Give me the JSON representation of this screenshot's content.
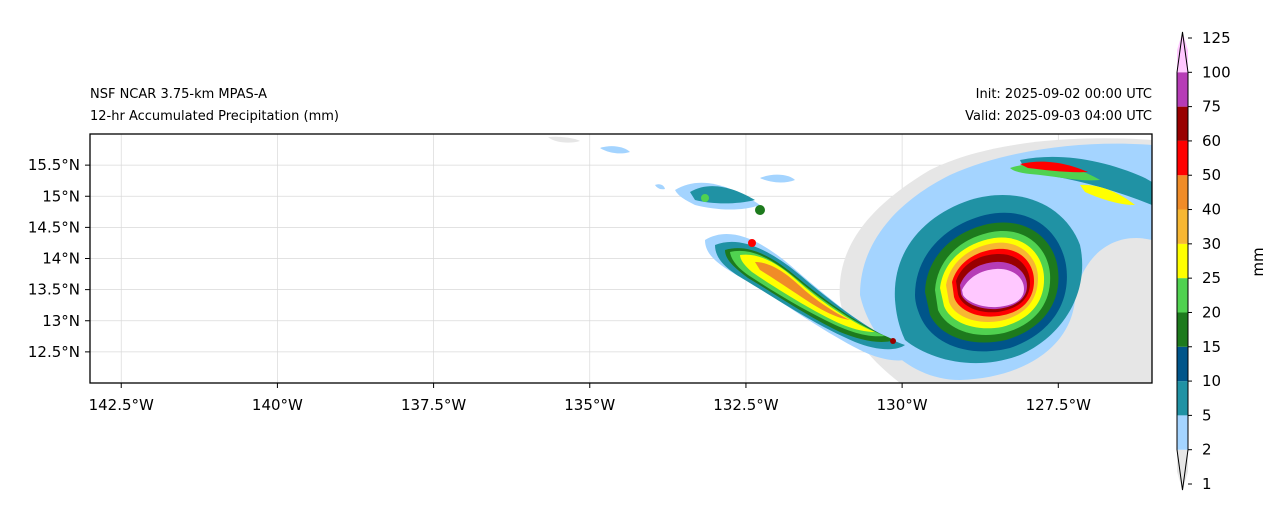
{
  "titles": {
    "model": "NSF NCAR 3.75-km MPAS-A",
    "field": "12-hr Accumulated Precipitation (mm)",
    "init": "Init: 2025-09-02 00:00 UTC",
    "valid": "Valid: 2025-09-03 04:00 UTC"
  },
  "map": {
    "lon_range": [
      -143,
      -126
    ],
    "lat_range": [
      12.0,
      16.0
    ],
    "lon_ticks": [
      {
        "value": -142.5,
        "label": "142.5°W"
      },
      {
        "value": -140.0,
        "label": "140°W"
      },
      {
        "value": -137.5,
        "label": "137.5°W"
      },
      {
        "value": -135.0,
        "label": "135°W"
      },
      {
        "value": -132.5,
        "label": "132.5°W"
      },
      {
        "value": -130.0,
        "label": "130°W"
      },
      {
        "value": -127.5,
        "label": "127.5°W"
      }
    ],
    "lat_ticks": [
      {
        "value": 15.5,
        "label": "15.5°N"
      },
      {
        "value": 15.0,
        "label": "15°N"
      },
      {
        "value": 14.5,
        "label": "14.5°N"
      },
      {
        "value": 14.0,
        "label": "14°N"
      },
      {
        "value": 13.5,
        "label": "13.5°N"
      },
      {
        "value": 13.0,
        "label": "13°N"
      },
      {
        "value": 12.5,
        "label": "12.5°N"
      }
    ],
    "gridlines": true
  },
  "colorbar": {
    "label": "mm",
    "levels": [
      "1",
      "2",
      "5",
      "10",
      "15",
      "20",
      "25",
      "30",
      "40",
      "50",
      "60",
      "75",
      "100",
      "125"
    ],
    "colors": [
      "#e6e6e6",
      "#a4d4ff",
      "#2092a4",
      "#00558a",
      "#1d7a1d",
      "#50d250",
      "#ffff00",
      "#f7b733",
      "#f08c28",
      "#ff0000",
      "#990000",
      "#b63cb6",
      "#ffc8ff"
    ],
    "extend": "both"
  }
}
